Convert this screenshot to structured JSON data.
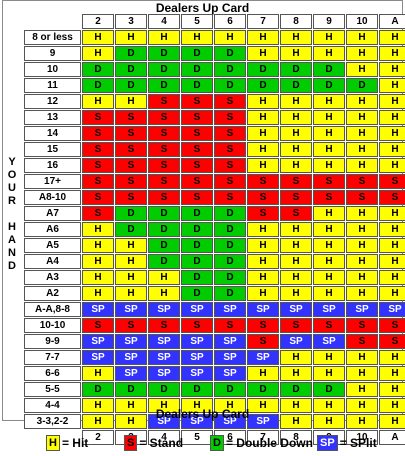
{
  "header_top": "Dealers Up Card",
  "header_bottom": "Dealers Up Card",
  "side_label_top": [
    "Y",
    "O",
    "U",
    "R"
  ],
  "side_label_bottom": [
    "H",
    "A",
    "N",
    "D"
  ],
  "columns": [
    "2",
    "3",
    "4",
    "5",
    "6",
    "7",
    "8",
    "9",
    "10",
    "A"
  ],
  "rows": [
    {
      "label": "8 or less",
      "cells": [
        "H",
        "H",
        "H",
        "H",
        "H",
        "H",
        "H",
        "H",
        "H",
        "H"
      ]
    },
    {
      "label": "9",
      "cells": [
        "H",
        "D",
        "D",
        "D",
        "D",
        "H",
        "H",
        "H",
        "H",
        "H"
      ]
    },
    {
      "label": "10",
      "cells": [
        "D",
        "D",
        "D",
        "D",
        "D",
        "D",
        "D",
        "D",
        "H",
        "H"
      ]
    },
    {
      "label": "11",
      "cells": [
        "D",
        "D",
        "D",
        "D",
        "D",
        "D",
        "D",
        "D",
        "D",
        "H"
      ]
    },
    {
      "label": "12",
      "cells": [
        "H",
        "H",
        "S",
        "S",
        "S",
        "H",
        "H",
        "H",
        "H",
        "H"
      ]
    },
    {
      "label": "13",
      "cells": [
        "S",
        "S",
        "S",
        "S",
        "S",
        "H",
        "H",
        "H",
        "H",
        "H"
      ]
    },
    {
      "label": "14",
      "cells": [
        "S",
        "S",
        "S",
        "S",
        "S",
        "H",
        "H",
        "H",
        "H",
        "H"
      ]
    },
    {
      "label": "15",
      "cells": [
        "S",
        "S",
        "S",
        "S",
        "S",
        "H",
        "H",
        "H",
        "H",
        "H"
      ]
    },
    {
      "label": "16",
      "cells": [
        "S",
        "S",
        "S",
        "S",
        "S",
        "H",
        "H",
        "H",
        "H",
        "H"
      ]
    },
    {
      "label": "17+",
      "cells": [
        "S",
        "S",
        "S",
        "S",
        "S",
        "S",
        "S",
        "S",
        "S",
        "S"
      ]
    },
    {
      "label": "A8-10",
      "cells": [
        "S",
        "S",
        "S",
        "S",
        "S",
        "S",
        "S",
        "S",
        "S",
        "S"
      ]
    },
    {
      "label": "A7",
      "cells": [
        "S",
        "D",
        "D",
        "D",
        "D",
        "S",
        "S",
        "H",
        "H",
        "H"
      ]
    },
    {
      "label": "A6",
      "cells": [
        "H",
        "D",
        "D",
        "D",
        "D",
        "H",
        "H",
        "H",
        "H",
        "H"
      ]
    },
    {
      "label": "A5",
      "cells": [
        "H",
        "H",
        "D",
        "D",
        "D",
        "H",
        "H",
        "H",
        "H",
        "H"
      ]
    },
    {
      "label": "A4",
      "cells": [
        "H",
        "H",
        "D",
        "D",
        "D",
        "H",
        "H",
        "H",
        "H",
        "H"
      ]
    },
    {
      "label": "A3",
      "cells": [
        "H",
        "H",
        "H",
        "D",
        "D",
        "H",
        "H",
        "H",
        "H",
        "H"
      ]
    },
    {
      "label": "A2",
      "cells": [
        "H",
        "H",
        "H",
        "D",
        "D",
        "H",
        "H",
        "H",
        "H",
        "H"
      ]
    },
    {
      "label": "A-A,8-8",
      "cells": [
        "SP",
        "SP",
        "SP",
        "SP",
        "SP",
        "SP",
        "SP",
        "SP",
        "SP",
        "SP"
      ]
    },
    {
      "label": "10-10",
      "cells": [
        "S",
        "S",
        "S",
        "S",
        "S",
        "S",
        "S",
        "S",
        "S",
        "S"
      ]
    },
    {
      "label": "9-9",
      "cells": [
        "SP",
        "SP",
        "SP",
        "SP",
        "SP",
        "S",
        "SP",
        "SP",
        "S",
        "S"
      ]
    },
    {
      "label": "7-7",
      "cells": [
        "SP",
        "SP",
        "SP",
        "SP",
        "SP",
        "SP",
        "H",
        "H",
        "H",
        "H"
      ]
    },
    {
      "label": "6-6",
      "cells": [
        "H",
        "SP",
        "SP",
        "SP",
        "SP",
        "H",
        "H",
        "H",
        "H",
        "H"
      ]
    },
    {
      "label": "5-5",
      "cells": [
        "D",
        "D",
        "D",
        "D",
        "D",
        "D",
        "D",
        "D",
        "H",
        "H"
      ]
    },
    {
      "label": "4-4",
      "cells": [
        "H",
        "H",
        "H",
        "H",
        "H",
        "H",
        "H",
        "H",
        "H",
        "H"
      ]
    },
    {
      "label": "3-3,2-2",
      "cells": [
        "H",
        "H",
        "SP",
        "SP",
        "SP",
        "SP",
        "H",
        "H",
        "H",
        "H"
      ]
    }
  ],
  "legend": [
    {
      "code": "H",
      "text": "= Hit",
      "color": "#ffff00"
    },
    {
      "code": "S",
      "text": "= Stand",
      "color": "#ff0000"
    },
    {
      "code": "D",
      "text": "= Double Down",
      "color": "#00cc00"
    },
    {
      "code": "SP",
      "text": "= SPlit",
      "color": "#3333ff"
    }
  ]
}
